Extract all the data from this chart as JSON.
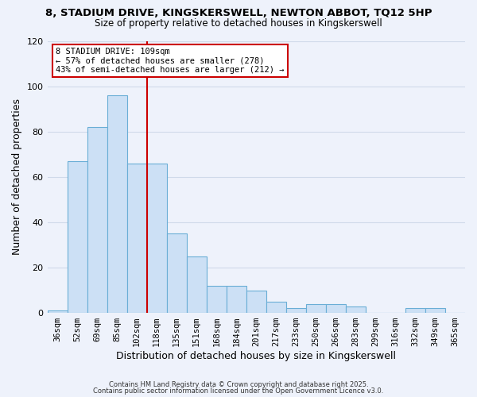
{
  "title": "8, STADIUM DRIVE, KINGSKERSWELL, NEWTON ABBOT, TQ12 5HP",
  "subtitle": "Size of property relative to detached houses in Kingskerswell",
  "xlabel": "Distribution of detached houses by size in Kingskerswell",
  "ylabel": "Number of detached properties",
  "bar_color": "#cce0f5",
  "bar_edge_color": "#6aaed6",
  "categories": [
    "36sqm",
    "52sqm",
    "69sqm",
    "85sqm",
    "102sqm",
    "118sqm",
    "135sqm",
    "151sqm",
    "168sqm",
    "184sqm",
    "201sqm",
    "217sqm",
    "233sqm",
    "250sqm",
    "266sqm",
    "283sqm",
    "299sqm",
    "316sqm",
    "332sqm",
    "349sqm",
    "365sqm"
  ],
  "values": [
    1,
    67,
    82,
    96,
    66,
    66,
    35,
    25,
    12,
    12,
    10,
    5,
    2,
    4,
    4,
    3,
    0,
    0,
    2,
    2,
    0
  ],
  "ylim": [
    0,
    120
  ],
  "yticks": [
    0,
    20,
    40,
    60,
    80,
    100,
    120
  ],
  "vline_x": 4.5,
  "vline_color": "#cc0000",
  "annotation_title": "8 STADIUM DRIVE: 109sqm",
  "annotation_line1": "← 57% of detached houses are smaller (278)",
  "annotation_line2": "43% of semi-detached houses are larger (212) →",
  "annotation_box_color": "#ffffff",
  "annotation_box_edge": "#cc0000",
  "footer1": "Contains HM Land Registry data © Crown copyright and database right 2025.",
  "footer2": "Contains public sector information licensed under the Open Government Licence v3.0.",
  "background_color": "#eef2fb",
  "grid_color": "#d0daea"
}
